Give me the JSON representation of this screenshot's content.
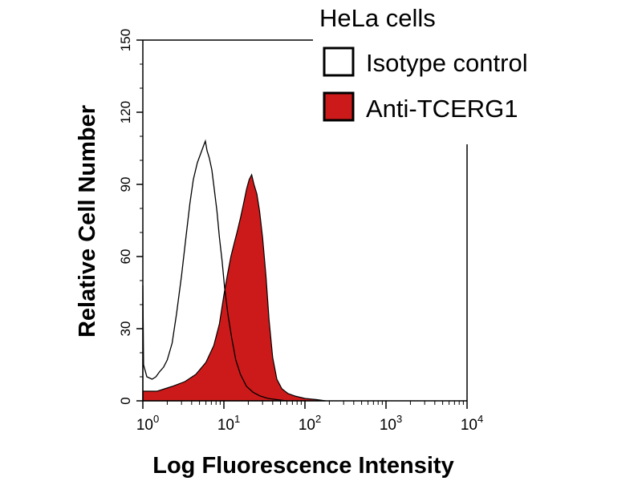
{
  "chart_data": {
    "type": "area",
    "title": "HeLa cells",
    "xlabel": "Log Fluorescence Intensity",
    "ylabel": "Relative Cell Number",
    "xscale": "log",
    "xlim": [
      1,
      10000
    ],
    "ylim": [
      0,
      150
    ],
    "yticks": [
      0,
      30,
      60,
      90,
      120,
      150
    ],
    "xticks": [
      {
        "value": 1,
        "base": "10",
        "exp": "0"
      },
      {
        "value": 10,
        "base": "10",
        "exp": "1"
      },
      {
        "value": 100,
        "base": "10",
        "exp": "2"
      },
      {
        "value": 1000,
        "base": "10",
        "exp": "3"
      },
      {
        "value": 10000,
        "base": "10",
        "exp": "4"
      }
    ],
    "legend_position": "top-right",
    "series": [
      {
        "name": "Isotype control",
        "style": "outline",
        "color": "#000000",
        "points": [
          [
            1.0,
            0
          ],
          [
            1.0,
            48
          ],
          [
            1.02,
            15
          ],
          [
            1.12,
            10
          ],
          [
            1.3,
            9
          ],
          [
            1.45,
            10
          ],
          [
            1.6,
            12
          ],
          [
            1.8,
            14
          ],
          [
            2.0,
            17
          ],
          [
            2.3,
            24
          ],
          [
            2.6,
            36
          ],
          [
            3.0,
            52
          ],
          [
            3.4,
            68
          ],
          [
            3.8,
            82
          ],
          [
            4.2,
            92
          ],
          [
            4.7,
            99
          ],
          [
            5.2,
            103
          ],
          [
            5.6,
            106
          ],
          [
            5.9,
            108
          ],
          [
            6.2,
            104
          ],
          [
            6.6,
            101
          ],
          [
            7.1,
            96
          ],
          [
            7.6,
            88
          ],
          [
            8.2,
            79
          ],
          [
            8.8,
            68
          ],
          [
            9.5,
            58
          ],
          [
            10.2,
            47
          ],
          [
            11.2,
            36
          ],
          [
            12.5,
            26
          ],
          [
            14.0,
            17
          ],
          [
            16.0,
            11
          ],
          [
            19.0,
            6
          ],
          [
            23.0,
            3.5
          ],
          [
            28.0,
            2
          ],
          [
            35.0,
            1
          ],
          [
            45.0,
            0.5
          ],
          [
            60.0,
            0
          ]
        ]
      },
      {
        "name": "Anti-TCERG1",
        "style": "filled",
        "color": "#cc1a1a",
        "points": [
          [
            1.0,
            0
          ],
          [
            1.0,
            4
          ],
          [
            1.5,
            4
          ],
          [
            2.3,
            6
          ],
          [
            3.3,
            8
          ],
          [
            4.5,
            11
          ],
          [
            6.0,
            16
          ],
          [
            7.5,
            23
          ],
          [
            8.8,
            32
          ],
          [
            10.0,
            44
          ],
          [
            11.0,
            52
          ],
          [
            12.2,
            60
          ],
          [
            13.5,
            66
          ],
          [
            14.5,
            70
          ],
          [
            16.0,
            76
          ],
          [
            17.5,
            82
          ],
          [
            19.0,
            88
          ],
          [
            20.5,
            92
          ],
          [
            22.0,
            94
          ],
          [
            23.5,
            90
          ],
          [
            25.5,
            86
          ],
          [
            27.5,
            79
          ],
          [
            30.0,
            68
          ],
          [
            33.0,
            52
          ],
          [
            36.0,
            34
          ],
          [
            40.0,
            18
          ],
          [
            45.0,
            9
          ],
          [
            52.0,
            5
          ],
          [
            62.0,
            3
          ],
          [
            75.0,
            2
          ],
          [
            100.0,
            1
          ],
          [
            140.0,
            0.5
          ],
          [
            180.0,
            0
          ]
        ]
      }
    ]
  }
}
